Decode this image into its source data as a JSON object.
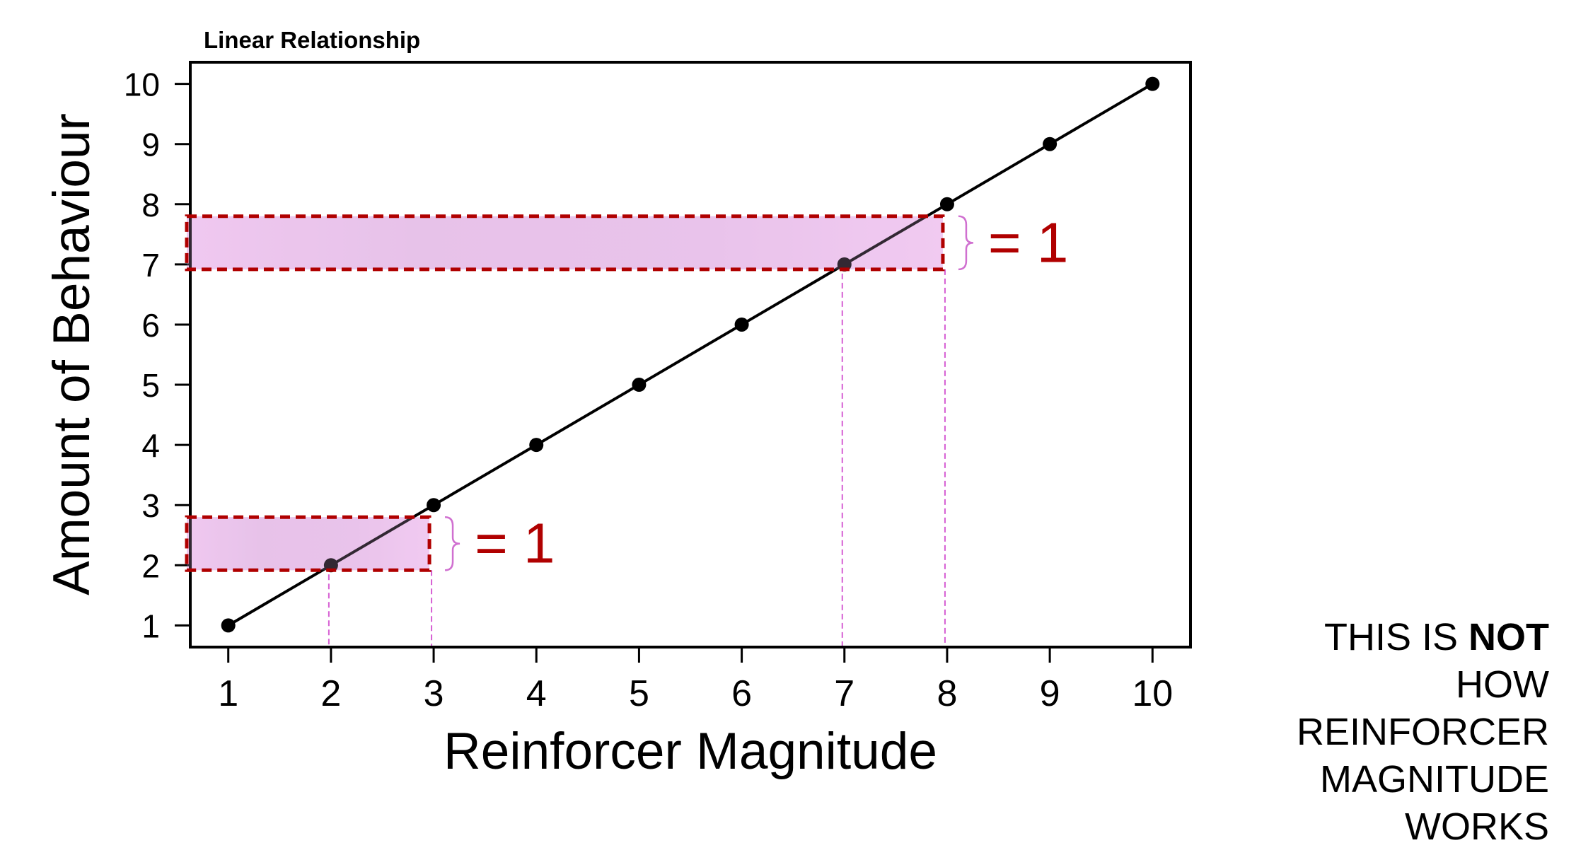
{
  "chart_data": {
    "type": "line",
    "title": "Linear Relationship",
    "xlabel": "Reinforcer Magnitude",
    "ylabel": "Amount of Behaviour",
    "x": [
      1,
      2,
      3,
      4,
      5,
      6,
      7,
      8,
      9,
      10
    ],
    "y": [
      1,
      2,
      3,
      4,
      5,
      6,
      7,
      8,
      9,
      10
    ],
    "xticks": [
      "1",
      "2",
      "3",
      "4",
      "5",
      "6",
      "7",
      "8",
      "9",
      "10"
    ],
    "yticks": [
      "1",
      "2",
      "3",
      "4",
      "5",
      "6",
      "7",
      "8",
      "9",
      "10"
    ],
    "xlim": [
      0.63,
      10.37
    ],
    "ylim": [
      0.64,
      10.36
    ],
    "grid": false,
    "annotations": [
      {
        "label": "= 1",
        "x_from": 2,
        "x_to": 3,
        "y_from": 2,
        "y_to": 3
      },
      {
        "label": "= 1",
        "x_from": 7,
        "x_to": 8,
        "y_from": 7,
        "y_to": 8
      }
    ],
    "colors": {
      "line": "#000000",
      "box_border": "#b00000",
      "box_fill": "#e9c1ea",
      "guide": "#d65fd3",
      "brace": "#d070d0",
      "annotation_text": "#b00000"
    }
  },
  "note": {
    "line1_prefix": "THIS IS ",
    "line1_bold": "NOT",
    "line2": "HOW",
    "line3": "REINFORCER",
    "line4": "MAGNITUDE",
    "line5": "WORKS"
  }
}
